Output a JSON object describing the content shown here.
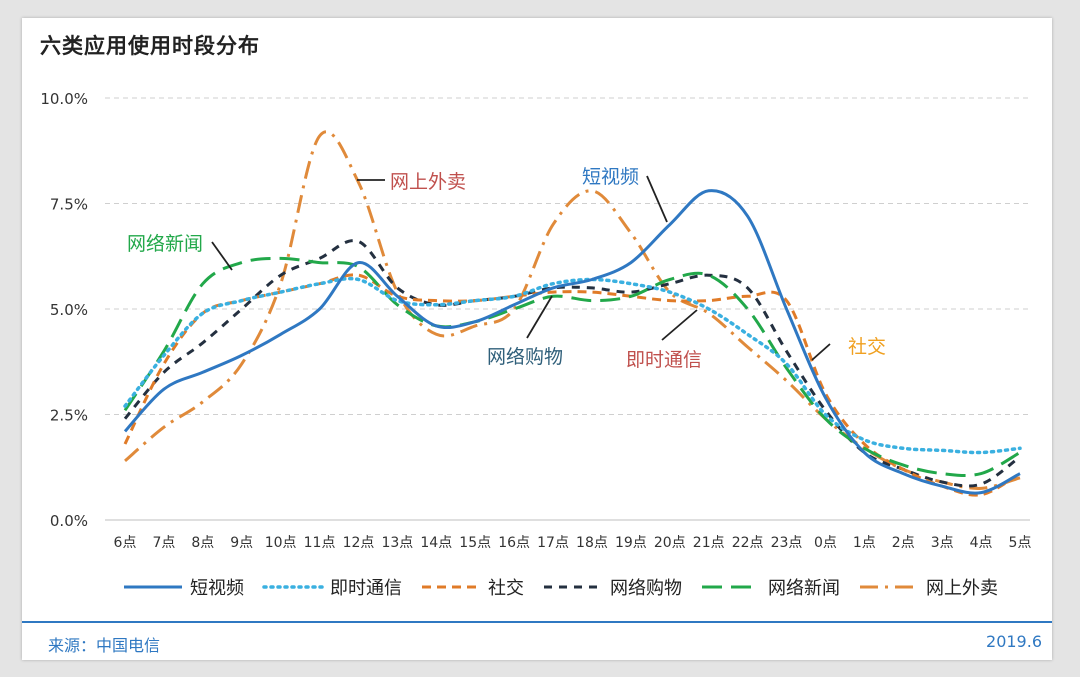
{
  "header": {
    "title": "六类应用使用时段分布"
  },
  "footer": {
    "source": "来源：中国电信",
    "date": "2019.6"
  },
  "chart_data": {
    "type": "line",
    "categories": [
      "6点",
      "7点",
      "8点",
      "9点",
      "10点",
      "11点",
      "12点",
      "13点",
      "14点",
      "15点",
      "16点",
      "17点",
      "18点",
      "19点",
      "20点",
      "21点",
      "22点",
      "23点",
      "0点",
      "1点",
      "2点",
      "3点",
      "4点",
      "5点"
    ],
    "y_ticks": [
      "0.0%",
      "2.5%",
      "5.0%",
      "7.5%",
      "10.0%"
    ],
    "ylim": [
      0,
      10
    ],
    "grid": true,
    "legend_position": "bottom",
    "series": [
      {
        "name": "短视频",
        "color": "#2f78c2",
        "dash": "solid",
        "values": [
          2.1,
          3.1,
          3.5,
          3.9,
          4.4,
          5.0,
          6.1,
          5.3,
          4.6,
          4.7,
          5.1,
          5.5,
          5.7,
          6.1,
          7.0,
          7.8,
          7.2,
          5.0,
          2.9,
          1.6,
          1.1,
          0.8,
          0.65,
          1.1
        ]
      },
      {
        "name": "即时通信",
        "color": "#3ab0e0",
        "dash": "dot",
        "values": [
          2.7,
          3.9,
          4.9,
          5.2,
          5.4,
          5.6,
          5.7,
          5.2,
          5.1,
          5.2,
          5.3,
          5.6,
          5.7,
          5.6,
          5.4,
          5.0,
          4.4,
          3.7,
          2.5,
          1.9,
          1.7,
          1.65,
          1.6,
          1.7
        ]
      },
      {
        "name": "社交",
        "color": "#e07b28",
        "dash": "dash",
        "values": [
          1.8,
          3.7,
          4.9,
          5.2,
          5.4,
          5.6,
          5.8,
          5.3,
          5.2,
          5.2,
          5.3,
          5.4,
          5.4,
          5.3,
          5.2,
          5.2,
          5.3,
          5.2,
          3.0,
          1.8,
          1.2,
          0.8,
          0.6,
          1.1
        ]
      },
      {
        "name": "网络购物",
        "color": "#243040",
        "dash": "dashlong",
        "values": [
          2.4,
          3.5,
          4.2,
          5.0,
          5.8,
          6.2,
          6.6,
          5.5,
          5.1,
          5.2,
          5.3,
          5.5,
          5.5,
          5.4,
          5.6,
          5.8,
          5.5,
          4.0,
          2.6,
          1.6,
          1.2,
          0.9,
          0.85,
          1.5
        ]
      },
      {
        "name": "网络新闻",
        "color": "#22a84a",
        "dash": "longdash",
        "values": [
          2.6,
          4.0,
          5.6,
          6.1,
          6.2,
          6.1,
          6.0,
          5.1,
          4.6,
          4.7,
          5.0,
          5.3,
          5.2,
          5.3,
          5.7,
          5.8,
          5.0,
          3.6,
          2.4,
          1.7,
          1.3,
          1.1,
          1.1,
          1.6
        ]
      },
      {
        "name": "网上外卖",
        "color": "#e08a3a",
        "dash": "dashdot",
        "values": [
          1.4,
          2.2,
          2.8,
          3.7,
          5.6,
          9.1,
          8.0,
          5.4,
          4.4,
          4.6,
          5.0,
          7.0,
          7.8,
          6.8,
          5.4,
          4.9,
          4.1,
          3.3,
          2.4,
          1.7,
          1.2,
          0.9,
          0.75,
          1.0
        ]
      }
    ],
    "annotations": [
      {
        "text": "网上外卖",
        "color": "#c0504d"
      },
      {
        "text": "短视频",
        "color": "#2f78c2"
      },
      {
        "text": "网络新闻",
        "color": "#22a84a"
      },
      {
        "text": "网络购物",
        "color": "#2f5f7a"
      },
      {
        "text": "即时通信",
        "color": "#c0504d"
      },
      {
        "text": "社交",
        "color": "#f0a020"
      }
    ]
  }
}
